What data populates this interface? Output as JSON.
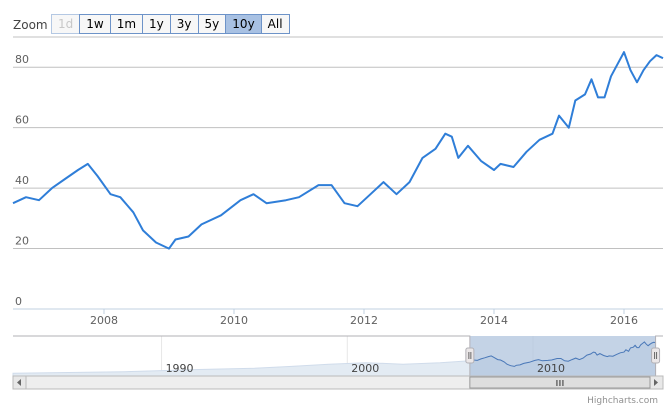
{
  "range_selector": {
    "label": "Zoom",
    "buttons": [
      {
        "label": "1d",
        "state": "disabled"
      },
      {
        "label": "1w",
        "state": "normal"
      },
      {
        "label": "1m",
        "state": "normal"
      },
      {
        "label": "1y",
        "state": "normal"
      },
      {
        "label": "3y",
        "state": "normal"
      },
      {
        "label": "5y",
        "state": "normal"
      },
      {
        "label": "10y",
        "state": "selected"
      },
      {
        "label": "All",
        "state": "normal"
      }
    ]
  },
  "credits": "Highcharts.com",
  "colors": {
    "line": "#2f7ed8",
    "grid": "#c0c0c0",
    "navigator_fill": "#b0c4de",
    "navigator_series": "#e3ebf3"
  },
  "chart_data": {
    "type": "line",
    "title": "",
    "xlabel": "",
    "ylabel": "",
    "xlim": [
      2006.6,
      2016.6
    ],
    "ylim": [
      0,
      90
    ],
    "y_ticks": [
      "0",
      "20",
      "40",
      "60",
      "80"
    ],
    "x_ticks": [
      "2008",
      "2010",
      "2012",
      "2014",
      "2016"
    ],
    "grid": true,
    "series": [
      {
        "x": [
          2006.6,
          2006.8,
          2007.0,
          2007.2,
          2007.4,
          2007.6,
          2007.75,
          2007.9,
          2008.1,
          2008.25,
          2008.45,
          2008.6,
          2008.8,
          2009.0,
          2009.1,
          2009.3,
          2009.5,
          2009.8,
          2010.1,
          2010.3,
          2010.5,
          2010.8,
          2011.0,
          2011.3,
          2011.5,
          2011.7,
          2011.9,
          2012.1,
          2012.3,
          2012.5,
          2012.7,
          2012.9,
          2013.1,
          2013.25,
          2013.35,
          2013.45,
          2013.6,
          2013.8,
          2014.0,
          2014.1,
          2014.3,
          2014.5,
          2014.7,
          2014.9,
          2015.0,
          2015.15,
          2015.25,
          2015.4,
          2015.5,
          2015.6,
          2015.7,
          2015.8,
          2015.9,
          2016.0,
          2016.1,
          2016.2,
          2016.3,
          2016.4,
          2016.5,
          2016.6
        ],
        "values": [
          35,
          37,
          36,
          40,
          43,
          46,
          48,
          44,
          38,
          37,
          32,
          26,
          22,
          20,
          23,
          24,
          28,
          31,
          36,
          38,
          35,
          36,
          37,
          41,
          41,
          35,
          34,
          38,
          42,
          38,
          42,
          50,
          53,
          58,
          57,
          50,
          54,
          49,
          46,
          48,
          47,
          52,
          56,
          58,
          64,
          60,
          69,
          71,
          76,
          70,
          70,
          77,
          81,
          85,
          79,
          75,
          79,
          82,
          84,
          83
        ]
      }
    ],
    "navigator": {
      "x_ticks": [
        "1990",
        "2000",
        "2010"
      ],
      "xlim": [
        1982,
        2017
      ],
      "selected_range": [
        2006.6,
        2016.6
      ]
    }
  }
}
